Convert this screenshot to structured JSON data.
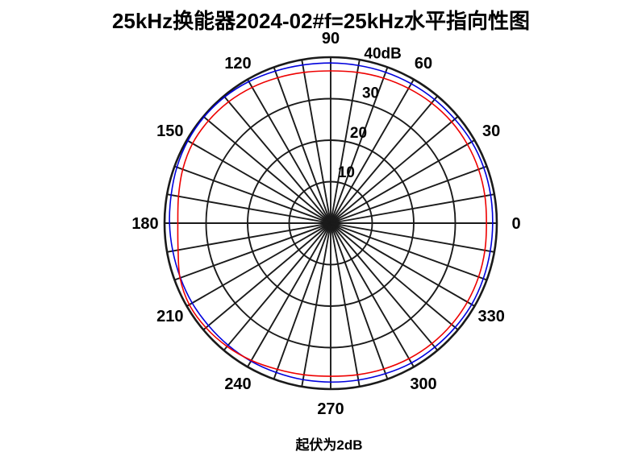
{
  "header": {
    "title": "25kHz换能器2024-02#f=25kHz水平指向性图"
  },
  "footer": {
    "caption": "起伏为2dB"
  },
  "chart_data": {
    "type": "line",
    "subtype": "polar",
    "title": "25kHz换能器2024-02#f=25kHz水平指向性图",
    "caption": "起伏为2dB",
    "units": "dB",
    "rlim": [
      0,
      40
    ],
    "radial_ticks": [
      10,
      20,
      30,
      40
    ],
    "radial_tick_labels": [
      "10",
      "20",
      "30",
      "40dB"
    ],
    "radial_label_angle_deg": 73,
    "angle_grid_step_deg": 10,
    "angle_tick_step_deg": 30,
    "angle_tick_labels": [
      "0",
      "30",
      "60",
      "90",
      "120",
      "150",
      "180",
      "210",
      "240",
      "270",
      "300",
      "330"
    ],
    "grid_on": true,
    "grid_color": "#1a1a1a",
    "legend": "none",
    "angles_deg": [
      0,
      10,
      20,
      30,
      40,
      50,
      60,
      70,
      80,
      90,
      100,
      110,
      120,
      130,
      140,
      150,
      160,
      170,
      180,
      190,
      200,
      210,
      220,
      230,
      240,
      250,
      260,
      270,
      280,
      290,
      300,
      310,
      320,
      330,
      340,
      350
    ],
    "series": [
      {
        "name": "blue-trace",
        "color": "#0000dd",
        "values": [
          39.0,
          39.1,
          39.2,
          39.2,
          39.0,
          38.9,
          38.8,
          38.7,
          38.6,
          38.6,
          38.7,
          39.0,
          39.4,
          39.7,
          39.8,
          39.7,
          39.4,
          39.0,
          38.8,
          38.6,
          38.5,
          38.5,
          38.4,
          38.4,
          38.4,
          38.3,
          38.3,
          38.3,
          38.4,
          38.6,
          38.9,
          39.0,
          39.1,
          39.2,
          39.1,
          39.0
        ]
      },
      {
        "name": "red-trace",
        "color": "#ee0000",
        "values": [
          37.5,
          37.7,
          37.9,
          38.0,
          38.0,
          37.8,
          37.5,
          37.2,
          36.9,
          36.7,
          36.9,
          37.3,
          37.8,
          38.2,
          38.4,
          38.4,
          37.9,
          37.2,
          36.8,
          37.3,
          38.6,
          39.3,
          39.2,
          38.8,
          38.2,
          37.5,
          37.1,
          36.9,
          37.1,
          37.4,
          37.7,
          37.9,
          38.0,
          38.0,
          37.9,
          37.7
        ]
      }
    ]
  }
}
